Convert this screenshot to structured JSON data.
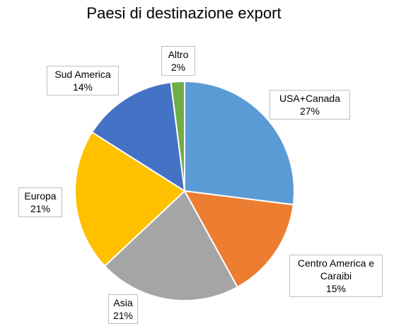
{
  "chart_data": {
    "type": "pie",
    "title": "Paesi di destinazione export",
    "slices": [
      {
        "label": "USA+Canada",
        "value": 27,
        "percent_text": "27%",
        "color": "#5b9bd5"
      },
      {
        "label": "Centro America e Caraibi",
        "value": 15,
        "percent_text": "15%",
        "color": "#ed7d31"
      },
      {
        "label": "Asia",
        "value": 21,
        "percent_text": "21%",
        "color": "#a5a5a5"
      },
      {
        "label": "Europa",
        "value": 21,
        "percent_text": "21%",
        "color": "#ffc000"
      },
      {
        "label": "Sud America",
        "value": 14,
        "percent_text": "14%",
        "color": "#4472c4"
      },
      {
        "label": "Altro",
        "value": 2,
        "percent_text": "2%",
        "color": "#70ad47"
      }
    ]
  }
}
